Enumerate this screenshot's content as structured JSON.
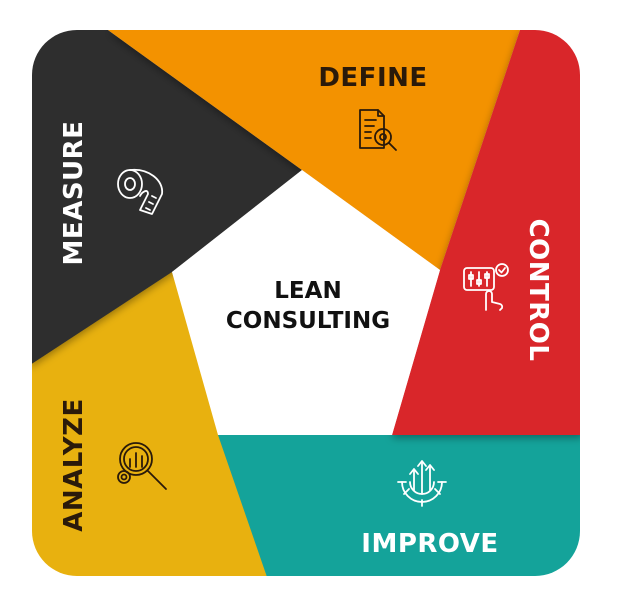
{
  "center": {
    "line1": "LEAN",
    "line2": "CONSULTING"
  },
  "segments": {
    "define": {
      "label": "DEFINE",
      "color": "#f39200",
      "text_color": "#2a1a0a",
      "icon": "document-search-icon"
    },
    "control": {
      "label": "CONTROL",
      "color": "#d9262b",
      "text_color": "#ffffff",
      "icon": "control-panel-icon"
    },
    "improve": {
      "label": "IMPROVE",
      "color": "#14a39a",
      "text_color": "#ffffff",
      "icon": "gear-arrows-icon"
    },
    "analyze": {
      "label": "ANALYZE",
      "color": "#e8b10f",
      "text_color": "#2a1a0a",
      "icon": "magnify-chart-icon"
    },
    "measure": {
      "label": "MEASURE",
      "color": "#2e2e2e",
      "text_color": "#ffffff",
      "icon": "tape-measure-icon"
    }
  },
  "center_color": "#ffffff"
}
